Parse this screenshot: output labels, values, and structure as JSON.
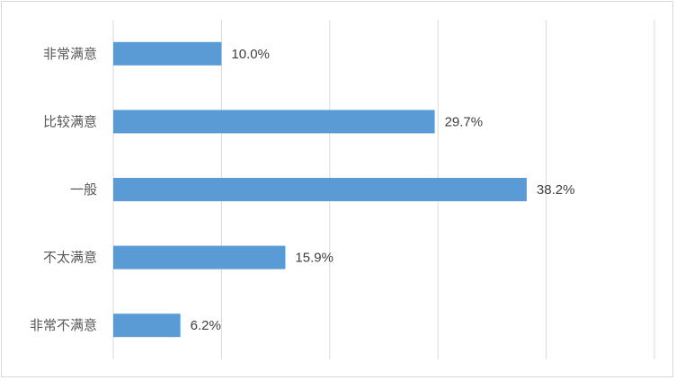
{
  "chart_data": {
    "type": "bar",
    "orientation": "horizontal",
    "categories": [
      "非常满意",
      "比较满意",
      "一般",
      "不太满意",
      "非常不满意"
    ],
    "values": [
      10.0,
      29.7,
      38.2,
      15.9,
      6.2
    ],
    "value_labels": [
      "10.0%",
      "29.7%",
      "38.2%",
      "15.9%",
      "6.2%"
    ],
    "title": "",
    "xlabel": "",
    "ylabel": "",
    "xlim": [
      0,
      50
    ],
    "grid": true,
    "legend": "none",
    "bar_color": "#5b9bd5"
  }
}
